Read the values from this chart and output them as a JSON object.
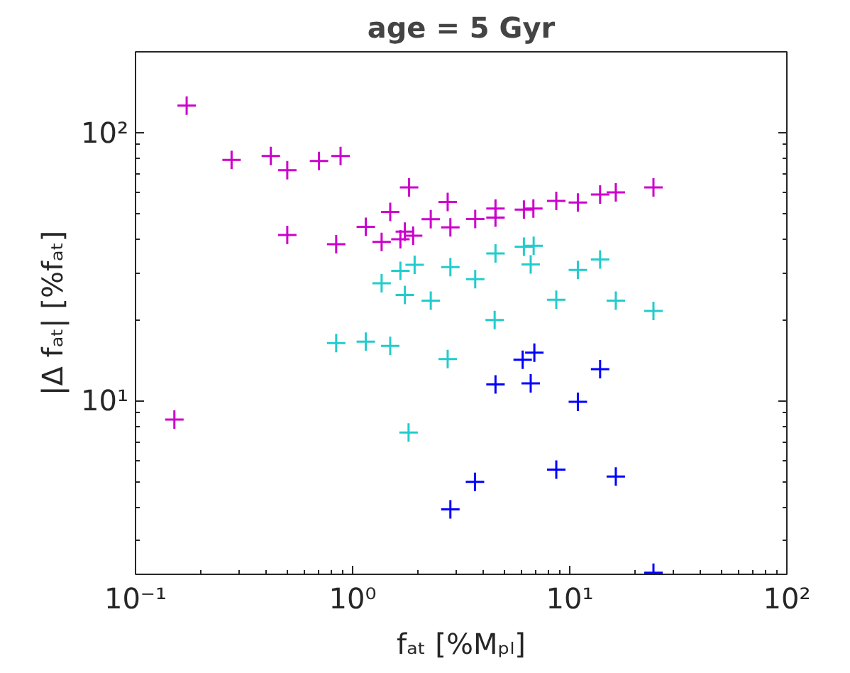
{
  "chart_data": {
    "type": "scatter",
    "title": "age = 5 Gyr",
    "xlabel": "fₐₜ [%Mₚₗ]",
    "ylabel": "|Δ fₐₜ| [%fₐₜ]",
    "log": "xy",
    "marker": "cross",
    "xlim": [
      0.1,
      100
    ],
    "ylim": [
      2.25,
      200
    ],
    "xticks": [
      {
        "value": 0.1,
        "label": "10⁻¹"
      },
      {
        "value": 1,
        "label": "10⁰"
      },
      {
        "value": 10,
        "label": "10¹"
      },
      {
        "value": 100,
        "label": "10²"
      }
    ],
    "yticks": [
      {
        "value": 10,
        "label": "10¹"
      },
      {
        "value": 100,
        "label": "10²"
      }
    ],
    "series": [
      {
        "color": "#cc00cc",
        "x": [
          0.151,
          0.172,
          0.277,
          0.42,
          0.5,
          0.7,
          0.88,
          0.5,
          0.84,
          1.15,
          1.49,
          1.82,
          1.36,
          1.66,
          1.74,
          1.9,
          2.29,
          2.74,
          2.82,
          3.67,
          4.55,
          4.55,
          6.15,
          6.8,
          8.67,
          10.9,
          13.8,
          16.3,
          24.3
        ],
        "values": [
          8.5,
          126,
          79,
          81.7,
          72.4,
          78.3,
          81.7,
          41.5,
          38.3,
          44.5,
          50.6,
          62.4,
          39.1,
          40.0,
          42.7,
          41.2,
          47.5,
          55.1,
          44.3,
          47.6,
          52.1,
          48.2,
          51.6,
          52.1,
          55.6,
          54.8,
          58.7,
          59.8,
          62.4
        ]
      },
      {
        "color": "#22cccc",
        "x": [
          1.66,
          1.93,
          1.36,
          1.74,
          2.29,
          0.84,
          1.15,
          1.49,
          1.81,
          2.82,
          3.67,
          4.55,
          6.15,
          6.82,
          6.61,
          10.9,
          13.8,
          8.67,
          16.3,
          24.3,
          4.51,
          2.74
        ],
        "values": [
          30.5,
          32.1,
          27.4,
          24.8,
          23.6,
          16.4,
          16.6,
          16.0,
          7.6,
          31.5,
          28.4,
          35.4,
          37.5,
          37.8,
          32.2,
          30.7,
          33.6,
          23.8,
          23.6,
          21.6,
          20.0,
          14.3
        ]
      },
      {
        "color": "#0000ff",
        "x": [
          6.07,
          6.87,
          4.55,
          6.61,
          13.8,
          10.9,
          3.66,
          2.82,
          8.67,
          16.3,
          24.3
        ],
        "values": [
          14.2,
          15.1,
          11.5,
          11.6,
          13.1,
          9.9,
          4.98,
          3.93,
          5.53,
          5.21,
          2.28
        ]
      }
    ]
  }
}
